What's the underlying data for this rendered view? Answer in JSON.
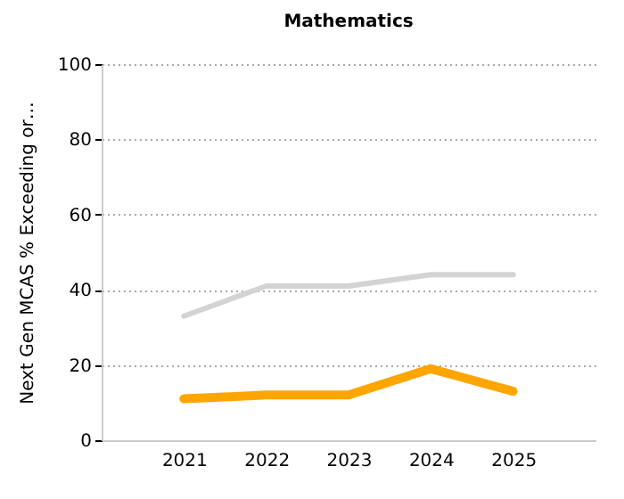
{
  "chart_data": {
    "type": "line",
    "title": "Mathematics",
    "ylabel": "Next Gen MCAS % Exceeding or…",
    "categories": [
      "2021",
      "2022",
      "2023",
      "2024",
      "2025"
    ],
    "series": [
      {
        "color": "#d3d3d3",
        "values": [
          33,
          41,
          41,
          44,
          44
        ]
      },
      {
        "color": "#ffa500",
        "values": [
          11,
          12,
          12,
          19,
          13
        ]
      }
    ],
    "ylim": [
      0,
      100
    ],
    "yticks": [
      0,
      20,
      40,
      60,
      80,
      100
    ],
    "grid": "y"
  }
}
